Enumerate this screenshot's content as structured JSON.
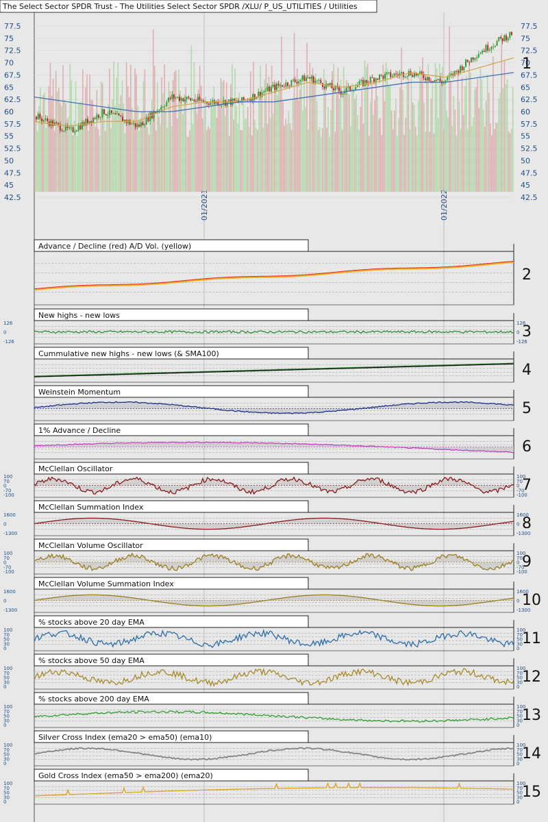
{
  "header": {
    "title": "The Select Sector SPDR Trust - The Utilities Select Sector SPDR /XLU/ P_US_UTILITIES / Utilities"
  },
  "main_chart": {
    "y_ticks": [
      "77.5",
      "75",
      "72.5",
      "70",
      "67.5",
      "65",
      "62.5",
      "60",
      "57.5",
      "55",
      "52.5",
      "50",
      "47.5",
      "45",
      "42.5"
    ],
    "x_ticks": [
      "01/2021",
      "01/2022"
    ],
    "panel_number": "1"
  },
  "chart_data": [
    {
      "type": "candlestick",
      "title": "The Select Sector SPDR Trust - The Utilities Select Sector SPDR /XLU/ P_US_UTILITIES / Utilities",
      "x": [
        "2020-05",
        "2020-07",
        "2020-09",
        "2020-11",
        "2021-01",
        "2021-03",
        "2021-05",
        "2021-07",
        "2021-09",
        "2021-11",
        "2022-01",
        "2022-03",
        "2022-05",
        "2022-07",
        "2022-08"
      ],
      "close_approx": [
        59,
        56,
        60,
        57,
        63,
        62,
        62,
        65,
        67,
        64,
        67,
        68,
        66,
        72,
        76
      ],
      "ema_fast_approx": [
        58,
        57,
        58,
        58,
        61,
        62,
        62,
        64,
        66,
        65,
        66,
        68,
        67,
        69,
        71
      ],
      "ema_slow_approx": [
        63,
        62,
        61,
        60,
        60,
        61,
        62,
        62,
        63,
        64,
        65,
        66,
        66,
        67,
        68
      ],
      "ylim": [
        42.5,
        77.5
      ],
      "colors": {
        "up": "#2e9e2e",
        "down": "#b03030",
        "ema_fast": "#d4a84a",
        "ema_slow": "#3f6fb5"
      }
    },
    {
      "type": "line",
      "name": "Advance / Decline (red) A/D Vol. (yellow)",
      "colors": {
        "ad": "#e02020",
        "vol": "#f0b020"
      }
    },
    {
      "type": "line",
      "name": "New highs - new lows",
      "scale": [
        "126",
        "0",
        "-126"
      ],
      "color": "#2e8b2e"
    },
    {
      "type": "line",
      "name": "Cummulative new highs - new lows (& SMA100)",
      "color": "#2e8b2e"
    },
    {
      "type": "area",
      "name": "Weinstein Momentum",
      "color": "#1a2e8c"
    },
    {
      "type": "area",
      "name": "1% Advance / Decline",
      "color": "#c040c0"
    },
    {
      "type": "area",
      "name": "McClellan Oscillator",
      "scale": [
        "100",
        "70",
        "0",
        "-70",
        "-100"
      ],
      "color": "#8b1a1a"
    },
    {
      "type": "area",
      "name": "McClellan Summation Index",
      "scale": [
        "1600",
        "0",
        "-1300"
      ],
      "color": "#8b1a1a"
    },
    {
      "type": "area",
      "name": "McClellan Volume Oscillator",
      "scale": [
        "100",
        "70",
        "0",
        "-70",
        "-100"
      ],
      "color": "#9c7c1c"
    },
    {
      "type": "area",
      "name": "McClellan Volume Summation Index",
      "scale": [
        "1600",
        "0",
        "-1300"
      ],
      "color": "#9c7c1c"
    },
    {
      "type": "line",
      "name": "% stocks above 20 day EMA",
      "scale": [
        "100",
        "70",
        "50",
        "30",
        "0"
      ],
      "color": "#2a6db0"
    },
    {
      "type": "line",
      "name": "% stocks above 50 day EMA",
      "scale": [
        "100",
        "70",
        "50",
        "30",
        "0"
      ],
      "color": "#a88a2a"
    },
    {
      "type": "line",
      "name": "% stocks above 200 day EMA",
      "scale": [
        "100",
        "70",
        "50",
        "30",
        "0"
      ],
      "color": "#2e9e2e"
    },
    {
      "type": "line",
      "name": "Silver Cross Index (ema20 > ema50) (ema10)",
      "scale": [
        "100",
        "70",
        "50",
        "30",
        "0"
      ],
      "color": "#7a7a7a"
    },
    {
      "type": "line",
      "name": "Gold Cross Index (ema50 > ema200) (ema20)",
      "scale": [
        "100",
        "70",
        "50",
        "30",
        "0"
      ],
      "color": "#e0a020"
    }
  ],
  "panels": [
    {
      "title": "Advance / Decline (red) A/D Vol. (yellow)",
      "number": "2"
    },
    {
      "title": "New highs - new lows",
      "number": "3",
      "scale": [
        "126",
        "0",
        "-126"
      ]
    },
    {
      "title": "Cummulative new highs - new lows (& SMA100)",
      "number": "4"
    },
    {
      "title": "Weinstein Momentum",
      "number": "5"
    },
    {
      "title": "1% Advance / Decline",
      "number": "6"
    },
    {
      "title": "McClellan Oscillator",
      "number": "7",
      "scale": [
        "100",
        "70",
        "0",
        "-70",
        "-100"
      ]
    },
    {
      "title": "McClellan Summation Index",
      "number": "8",
      "scale": [
        "1600",
        "0",
        "-1300"
      ]
    },
    {
      "title": "McClellan Volume Oscillator",
      "number": "9",
      "scale": [
        "100",
        "70",
        "0",
        "-70",
        "-100"
      ]
    },
    {
      "title": "McClellan Volume Summation Index",
      "number": "10",
      "scale": [
        "1600",
        "0",
        "-1300"
      ]
    },
    {
      "title": "% stocks above 20 day EMA",
      "number": "11",
      "scale": [
        "100",
        "70",
        "50",
        "30",
        "0"
      ]
    },
    {
      "title": "% stocks above 50 day EMA",
      "number": "12",
      "scale": [
        "100",
        "70",
        "50",
        "30",
        "0"
      ]
    },
    {
      "title": "% stocks above 200 day EMA",
      "number": "13",
      "scale": [
        "100",
        "70",
        "50",
        "30",
        "0"
      ]
    },
    {
      "title": "Silver Cross Index (ema20 > ema50) (ema10)",
      "number": "14",
      "scale": [
        "100",
        "70",
        "50",
        "30",
        "0"
      ]
    },
    {
      "title": "Gold Cross Index (ema50 > ema200) (ema20)",
      "number": "15",
      "scale": [
        "100",
        "70",
        "50",
        "30",
        "0"
      ]
    }
  ]
}
